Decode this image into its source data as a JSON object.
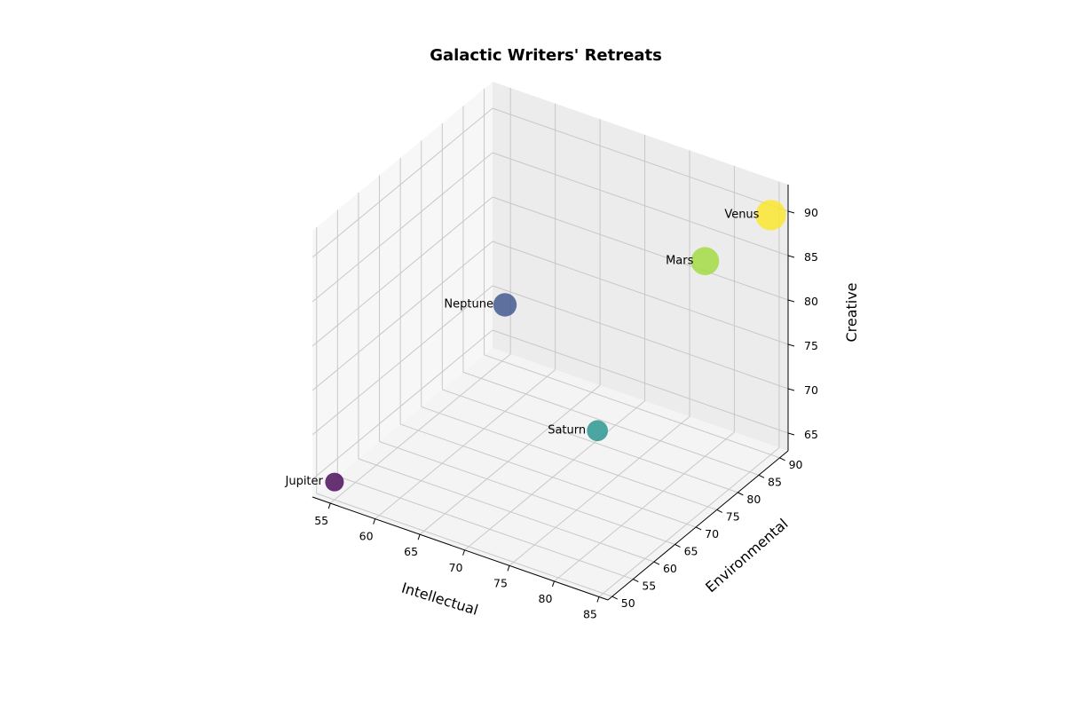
{
  "chart_data": {
    "type": "scatter",
    "title": "Galactic Writers' Retreats",
    "xlabel": "Intellectual",
    "ylabel": "Environmental",
    "zlabel": "Creative",
    "x_ticks": [
      "55",
      "60",
      "65",
      "70",
      "75",
      "80",
      "85"
    ],
    "y_ticks": [
      "50",
      "55",
      "60",
      "65",
      "70",
      "75",
      "80",
      "85",
      "90"
    ],
    "z_ticks": [
      "65",
      "70",
      "75",
      "80",
      "85",
      "90"
    ],
    "xlim": [
      53,
      86
    ],
    "ylim": [
      49,
      92
    ],
    "zlim": [
      63,
      93
    ],
    "grid": true,
    "points": [
      {
        "label": "Jupiter",
        "x": 55,
        "y": 50,
        "z": 65,
        "color": "#440154"
      },
      {
        "label": "Saturn",
        "x": 75,
        "y": 70,
        "z": 70,
        "color": "#21918c"
      },
      {
        "label": "Neptune",
        "x": 60,
        "y": 80,
        "z": 75,
        "color": "#3b528b"
      },
      {
        "label": "Mars",
        "x": 80,
        "y": 85,
        "z": 85,
        "color": "#a0da39"
      },
      {
        "label": "Venus",
        "x": 85,
        "y": 90,
        "z": 90,
        "color": "#fde725"
      }
    ]
  }
}
